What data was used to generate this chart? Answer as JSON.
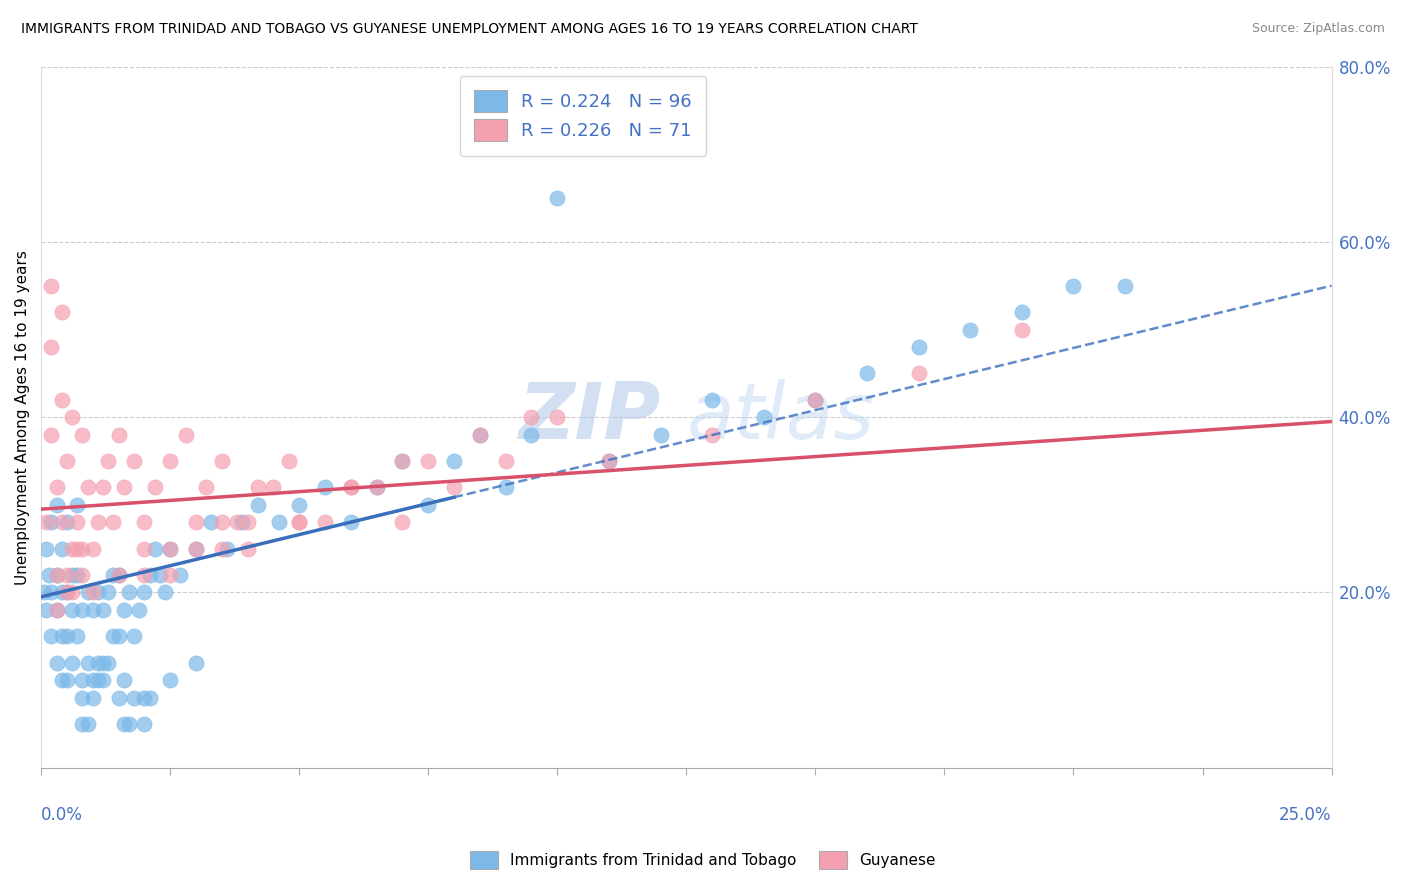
{
  "title": "IMMIGRANTS FROM TRINIDAD AND TOBAGO VS GUYANESE UNEMPLOYMENT AMONG AGES 16 TO 19 YEARS CORRELATION CHART",
  "source": "Source: ZipAtlas.com",
  "ylabel": "Unemployment Among Ages 16 to 19 years",
  "xlim": [
    0.0,
    0.25
  ],
  "ylim": [
    0.0,
    0.8
  ],
  "watermark_zip": "ZIP",
  "watermark_atlas": "atlas",
  "color_tt": "#7cb9e8",
  "color_tt_line": "#3a6fbc",
  "color_gy": "#f4a0b0",
  "color_gy_line": "#d9506a",
  "R_tt": "0.224",
  "N_tt": "96",
  "R_gy": "0.226",
  "N_gy": "71",
  "legend_bottom_tt": "Immigrants from Trinidad and Tobago",
  "legend_bottom_gy": "Guyanese",
  "trend_tt_x0": 0.0,
  "trend_tt_y0": 0.195,
  "trend_tt_x1": 0.25,
  "trend_tt_y1": 0.55,
  "trend_gy_x0": 0.0,
  "trend_gy_y0": 0.295,
  "trend_gy_x1": 0.25,
  "trend_gy_y1": 0.395,
  "tt_x": [
    0.0005,
    0.001,
    0.001,
    0.0015,
    0.002,
    0.002,
    0.002,
    0.003,
    0.003,
    0.003,
    0.003,
    0.004,
    0.004,
    0.004,
    0.004,
    0.005,
    0.005,
    0.005,
    0.005,
    0.006,
    0.006,
    0.006,
    0.007,
    0.007,
    0.007,
    0.008,
    0.008,
    0.009,
    0.009,
    0.01,
    0.01,
    0.011,
    0.011,
    0.012,
    0.012,
    0.013,
    0.013,
    0.014,
    0.014,
    0.015,
    0.015,
    0.016,
    0.017,
    0.018,
    0.019,
    0.02,
    0.021,
    0.022,
    0.023,
    0.024,
    0.025,
    0.027,
    0.03,
    0.033,
    0.036,
    0.039,
    0.042,
    0.046,
    0.05,
    0.055,
    0.06,
    0.065,
    0.07,
    0.075,
    0.08,
    0.085,
    0.09,
    0.095,
    0.1,
    0.11,
    0.12,
    0.13,
    0.14,
    0.15,
    0.16,
    0.17,
    0.18,
    0.19,
    0.2,
    0.21,
    0.017,
    0.02,
    0.025,
    0.03,
    0.008,
    0.008,
    0.009,
    0.01,
    0.011,
    0.012,
    0.015,
    0.016,
    0.016,
    0.018,
    0.02,
    0.021
  ],
  "tt_y": [
    0.2,
    0.18,
    0.25,
    0.22,
    0.15,
    0.2,
    0.28,
    0.12,
    0.18,
    0.22,
    0.3,
    0.1,
    0.15,
    0.2,
    0.25,
    0.1,
    0.15,
    0.2,
    0.28,
    0.12,
    0.18,
    0.22,
    0.15,
    0.22,
    0.3,
    0.1,
    0.18,
    0.12,
    0.2,
    0.1,
    0.18,
    0.12,
    0.2,
    0.1,
    0.18,
    0.12,
    0.2,
    0.15,
    0.22,
    0.15,
    0.22,
    0.18,
    0.2,
    0.15,
    0.18,
    0.2,
    0.22,
    0.25,
    0.22,
    0.2,
    0.25,
    0.22,
    0.25,
    0.28,
    0.25,
    0.28,
    0.3,
    0.28,
    0.3,
    0.32,
    0.28,
    0.32,
    0.35,
    0.3,
    0.35,
    0.38,
    0.32,
    0.38,
    0.65,
    0.35,
    0.38,
    0.42,
    0.4,
    0.42,
    0.45,
    0.48,
    0.5,
    0.52,
    0.55,
    0.55,
    0.05,
    0.08,
    0.1,
    0.12,
    0.05,
    0.08,
    0.05,
    0.08,
    0.1,
    0.12,
    0.08,
    0.1,
    0.05,
    0.08,
    0.05,
    0.08
  ],
  "gy_x": [
    0.001,
    0.002,
    0.002,
    0.003,
    0.003,
    0.004,
    0.004,
    0.005,
    0.005,
    0.006,
    0.006,
    0.007,
    0.008,
    0.008,
    0.009,
    0.01,
    0.011,
    0.012,
    0.013,
    0.014,
    0.015,
    0.016,
    0.018,
    0.02,
    0.022,
    0.025,
    0.028,
    0.032,
    0.035,
    0.038,
    0.042,
    0.048,
    0.055,
    0.065,
    0.075,
    0.085,
    0.095,
    0.11,
    0.13,
    0.15,
    0.17,
    0.19,
    0.02,
    0.025,
    0.03,
    0.035,
    0.04,
    0.045,
    0.05,
    0.06,
    0.07,
    0.08,
    0.09,
    0.1,
    0.003,
    0.005,
    0.007,
    0.01,
    0.015,
    0.02,
    0.025,
    0.03,
    0.035,
    0.04,
    0.05,
    0.06,
    0.07,
    0.002,
    0.004,
    0.006,
    0.008
  ],
  "gy_y": [
    0.28,
    0.38,
    0.48,
    0.22,
    0.32,
    0.28,
    0.42,
    0.2,
    0.35,
    0.25,
    0.4,
    0.28,
    0.22,
    0.38,
    0.32,
    0.25,
    0.28,
    0.32,
    0.35,
    0.28,
    0.38,
    0.32,
    0.35,
    0.28,
    0.32,
    0.35,
    0.38,
    0.32,
    0.35,
    0.28,
    0.32,
    0.35,
    0.28,
    0.32,
    0.35,
    0.38,
    0.4,
    0.35,
    0.38,
    0.42,
    0.45,
    0.5,
    0.22,
    0.25,
    0.28,
    0.25,
    0.28,
    0.32,
    0.28,
    0.32,
    0.35,
    0.32,
    0.35,
    0.4,
    0.18,
    0.22,
    0.25,
    0.2,
    0.22,
    0.25,
    0.22,
    0.25,
    0.28,
    0.25,
    0.28,
    0.32,
    0.28,
    0.55,
    0.52,
    0.2,
    0.25
  ]
}
